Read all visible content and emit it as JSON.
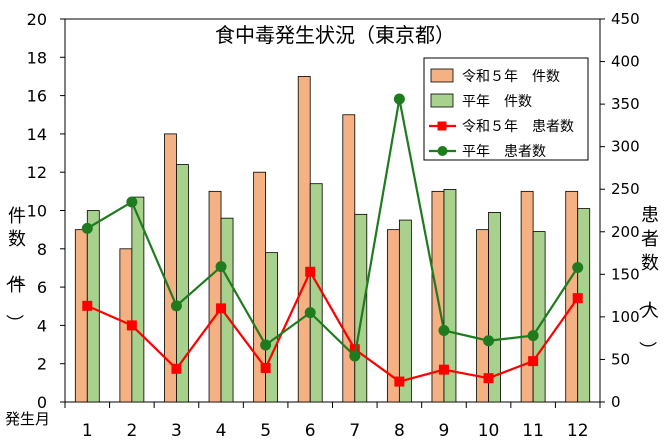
{
  "chart_data": {
    "type": "bar",
    "title": "食中毒発生状況（東京都）",
    "xlabel": "発生月",
    "ylabel_left": "件数（件）",
    "ylabel_right": "患者数（人）",
    "categories": [
      "1",
      "2",
      "3",
      "4",
      "5",
      "6",
      "7",
      "8",
      "9",
      "10",
      "11",
      "12"
    ],
    "ylim_left": [
      0,
      20
    ],
    "yticks_left": [
      0,
      2,
      4,
      6,
      8,
      10,
      12,
      14,
      16,
      18,
      20
    ],
    "ylim_right": [
      0,
      450
    ],
    "yticks_right": [
      0,
      50,
      100,
      150,
      200,
      250,
      300,
      350,
      400,
      450
    ],
    "grid": false,
    "legend_position": "top-right",
    "bar_series": [
      {
        "name": "令和５年　件数",
        "axis": "left",
        "color": "#f4b183",
        "values": [
          9,
          8,
          14,
          11,
          12,
          17,
          15,
          9,
          11,
          9,
          11,
          11
        ]
      },
      {
        "name": "平年　件数",
        "axis": "left",
        "color": "#a9d18e",
        "values": [
          10,
          10.7,
          12.4,
          9.6,
          7.8,
          11.4,
          9.8,
          9.5,
          11.1,
          9.9,
          8.9,
          10.1
        ]
      }
    ],
    "line_series": [
      {
        "name": "令和５年　患者数",
        "axis": "right",
        "color": "#ff0000",
        "marker": "square",
        "values": [
          113,
          90,
          39,
          110,
          40,
          153,
          62,
          24,
          38,
          28,
          48,
          122
        ]
      },
      {
        "name": "平年　患者数",
        "axis": "right",
        "color": "#1e7b1e",
        "marker": "circle",
        "values": [
          204,
          235,
          113,
          159,
          67,
          105,
          54,
          356,
          84,
          72,
          78,
          158
        ]
      }
    ]
  }
}
